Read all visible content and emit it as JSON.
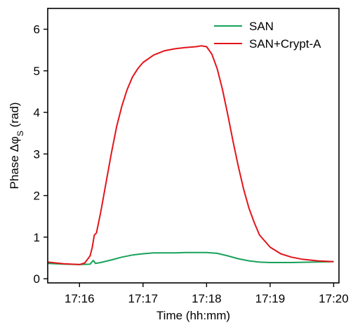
{
  "chart_data": {
    "type": "line",
    "title": "",
    "xlabel": "Time (hh:mm)",
    "ylabel_prefix": "Phase Δφ",
    "ylabel_sub": "S",
    "ylabel_suffix": " (rad)",
    "xlim": [
      "17:15:30",
      "17:20:05"
    ],
    "ylim": [
      -0.1,
      6.5
    ],
    "x_ticks": [
      "17:16",
      "17:17",
      "17:18",
      "17:19",
      "17:20"
    ],
    "y_ticks": [
      0,
      1,
      2,
      3,
      4,
      5,
      6
    ],
    "grid": false,
    "legend_position": "top-right",
    "series": [
      {
        "name": "SAN",
        "color": "#18a25a",
        "x": [
          "17:15:30",
          "17:15:45",
          "17:16:00",
          "17:16:10",
          "17:16:13",
          "17:16:15",
          "17:16:20",
          "17:16:30",
          "17:16:40",
          "17:16:50",
          "17:17:00",
          "17:17:10",
          "17:17:20",
          "17:17:30",
          "17:17:40",
          "17:17:50",
          "17:18:00",
          "17:18:10",
          "17:18:20",
          "17:18:30",
          "17:18:40",
          "17:18:50",
          "17:19:00",
          "17:19:20",
          "17:19:40",
          "17:20:00"
        ],
        "y": [
          0.37,
          0.35,
          0.34,
          0.35,
          0.44,
          0.37,
          0.39,
          0.45,
          0.52,
          0.57,
          0.6,
          0.62,
          0.62,
          0.62,
          0.63,
          0.63,
          0.63,
          0.61,
          0.55,
          0.48,
          0.43,
          0.4,
          0.39,
          0.39,
          0.4,
          0.41
        ]
      },
      {
        "name": "SAN+Crypt-A",
        "color": "#e3141b",
        "x": [
          "17:15:30",
          "17:15:45",
          "17:16:00",
          "17:16:05",
          "17:16:10",
          "17:16:12",
          "17:16:14",
          "17:16:16",
          "17:16:20",
          "17:16:25",
          "17:16:30",
          "17:16:35",
          "17:16:40",
          "17:16:45",
          "17:16:50",
          "17:16:55",
          "17:17:00",
          "17:17:10",
          "17:17:20",
          "17:17:30",
          "17:17:40",
          "17:17:50",
          "17:17:55",
          "17:18:00",
          "17:18:05",
          "17:18:10",
          "17:18:15",
          "17:18:20",
          "17:18:25",
          "17:18:30",
          "17:18:35",
          "17:18:40",
          "17:18:45",
          "17:18:50",
          "17:19:00",
          "17:19:10",
          "17:19:20",
          "17:19:30",
          "17:19:45",
          "17:20:00"
        ],
        "y": [
          0.4,
          0.36,
          0.34,
          0.38,
          0.55,
          0.75,
          1.05,
          1.1,
          1.6,
          2.3,
          3.0,
          3.65,
          4.15,
          4.55,
          4.85,
          5.05,
          5.2,
          5.38,
          5.48,
          5.53,
          5.56,
          5.58,
          5.6,
          5.58,
          5.4,
          5.05,
          4.55,
          3.95,
          3.3,
          2.7,
          2.15,
          1.7,
          1.35,
          1.05,
          0.76,
          0.6,
          0.52,
          0.47,
          0.43,
          0.41
        ]
      }
    ]
  }
}
